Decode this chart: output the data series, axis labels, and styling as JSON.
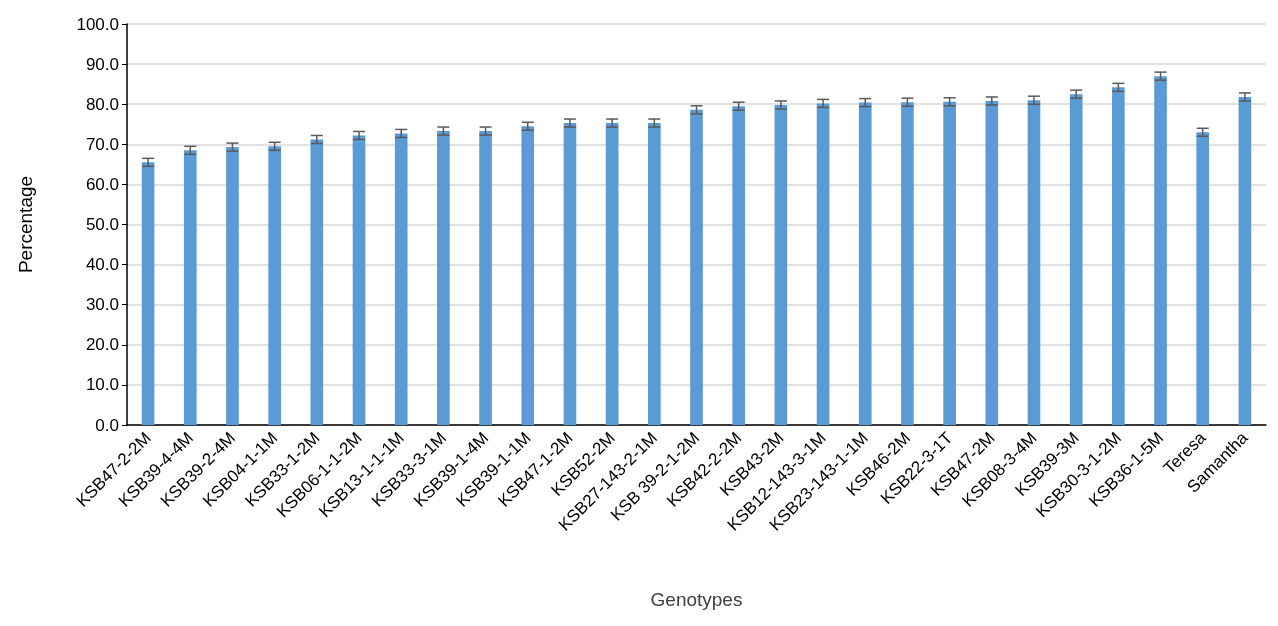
{
  "chart_data": {
    "type": "bar",
    "xlabel": "Genotypes",
    "ylabel": "Percentage",
    "categories": [
      "KSB47-2-2M",
      "KSB39-4-4M",
      "KSB39-2-4M",
      "KSB04-1-1M",
      "KSB33-1-2M",
      "KSB06-1-1-2M",
      "KSB13-1-1-1M",
      "KSB33-3-1M",
      "KSB39-1-4M",
      "KSB39-1-1M",
      "KSB47-1-2M",
      "KSB52-2M",
      "KSB27-143-2-1M",
      "KSB 39-2-1-2M",
      "KSB42-2-2M",
      "KSB43-2M",
      "KSB12-143-3-1M",
      "KSB23-143-1-1M",
      "KSB46-2M",
      "KSB22-3-1T",
      "KSB47-2M",
      "KSB08-3-4M",
      "KSB39-3M",
      "KSB30-3-1-2M",
      "KSB36-1-5M",
      "Teresa",
      "Samantha"
    ],
    "values": [
      65.5,
      68.5,
      69.3,
      69.5,
      71.2,
      72.2,
      72.7,
      73.3,
      73.3,
      74.5,
      75.3,
      75.3,
      75.3,
      78.6,
      79.5,
      79.8,
      80.2,
      80.4,
      80.5,
      80.6,
      80.8,
      81.0,
      82.5,
      84.2,
      87.0,
      73.0,
      81.8
    ],
    "errors": [
      1.0,
      1.0,
      1.0,
      1.0,
      1.0,
      1.0,
      1.0,
      1.0,
      1.0,
      1.0,
      1.0,
      1.0,
      1.0,
      1.0,
      1.0,
      1.0,
      1.0,
      1.0,
      1.0,
      1.0,
      1.0,
      1.0,
      1.0,
      1.0,
      1.0,
      1.0,
      1.0
    ],
    "color": "#5b9bd5",
    "ylim": [
      0,
      100
    ],
    "yticks": [
      {
        "value": 0,
        "label": "0.0"
      },
      {
        "value": 10,
        "label": "10.0"
      },
      {
        "value": 20,
        "label": "20.0"
      },
      {
        "value": 30,
        "label": "30.0"
      },
      {
        "value": 40,
        "label": "40.0"
      },
      {
        "value": 50,
        "label": "50.0"
      },
      {
        "value": 60,
        "label": "60.0"
      },
      {
        "value": 70,
        "label": "70.0"
      },
      {
        "value": 80,
        "label": "80.0"
      },
      {
        "value": 90,
        "label": "90.0"
      },
      {
        "value": 100,
        "label": "100.0"
      }
    ],
    "grid": "y"
  }
}
